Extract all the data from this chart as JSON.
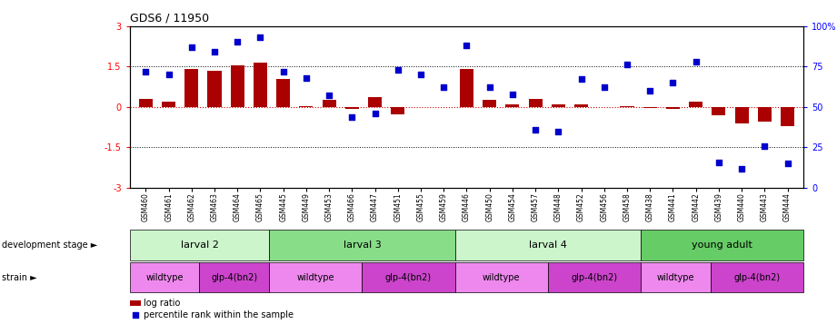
{
  "title": "GDS6 / 11950",
  "samples": [
    "GSM460",
    "GSM461",
    "GSM462",
    "GSM463",
    "GSM464",
    "GSM465",
    "GSM445",
    "GSM449",
    "GSM453",
    "GSM466",
    "GSM447",
    "GSM451",
    "GSM455",
    "GSM459",
    "GSM446",
    "GSM450",
    "GSM454",
    "GSM457",
    "GSM448",
    "GSM452",
    "GSM456",
    "GSM458",
    "GSM438",
    "GSM441",
    "GSM442",
    "GSM439",
    "GSM440",
    "GSM443",
    "GSM444"
  ],
  "log_ratio": [
    0.3,
    0.2,
    1.42,
    1.35,
    1.55,
    1.65,
    1.05,
    0.02,
    0.26,
    -0.06,
    0.35,
    -0.28,
    -0.02,
    0.01,
    1.42,
    0.26,
    0.08,
    0.3,
    0.08,
    0.1,
    0.01,
    0.04,
    -0.05,
    -0.07,
    0.2,
    -0.3,
    -0.6,
    -0.55,
    -0.72
  ],
  "percentile": [
    72,
    70,
    87,
    84,
    90,
    93,
    72,
    68,
    57,
    44,
    46,
    73,
    70,
    62,
    88,
    62,
    58,
    36,
    35,
    67,
    62,
    76,
    60,
    65,
    78,
    16,
    12,
    26,
    15
  ],
  "dev_stages": [
    {
      "label": "larval 2",
      "start": 0,
      "end": 6,
      "color": "#ccf5cc"
    },
    {
      "label": "larval 3",
      "start": 6,
      "end": 14,
      "color": "#88dd88"
    },
    {
      "label": "larval 4",
      "start": 14,
      "end": 22,
      "color": "#ccf5cc"
    },
    {
      "label": "young adult",
      "start": 22,
      "end": 29,
      "color": "#66cc66"
    }
  ],
  "strains": [
    {
      "label": "wildtype",
      "start": 0,
      "end": 3,
      "color": "#ee88ee"
    },
    {
      "label": "glp-4(bn2)",
      "start": 3,
      "end": 6,
      "color": "#cc44cc"
    },
    {
      "label": "wildtype",
      "start": 6,
      "end": 10,
      "color": "#ee88ee"
    },
    {
      "label": "glp-4(bn2)",
      "start": 10,
      "end": 14,
      "color": "#cc44cc"
    },
    {
      "label": "wildtype",
      "start": 14,
      "end": 18,
      "color": "#ee88ee"
    },
    {
      "label": "glp-4(bn2)",
      "start": 18,
      "end": 22,
      "color": "#cc44cc"
    },
    {
      "label": "wildtype",
      "start": 22,
      "end": 25,
      "color": "#ee88ee"
    },
    {
      "label": "glp-4(bn2)",
      "start": 25,
      "end": 29,
      "color": "#cc44cc"
    }
  ],
  "ylim": [
    -3,
    3
  ],
  "yticks_left": [
    -3,
    -1.5,
    0,
    1.5,
    3
  ],
  "yticks_right": [
    0,
    25,
    50,
    75,
    100
  ],
  "bar_color": "#aa0000",
  "scatter_color": "#0000cc",
  "dotted_lines": [
    1.5,
    0.0,
    -1.5
  ],
  "zero_line_color": "#cc0000"
}
